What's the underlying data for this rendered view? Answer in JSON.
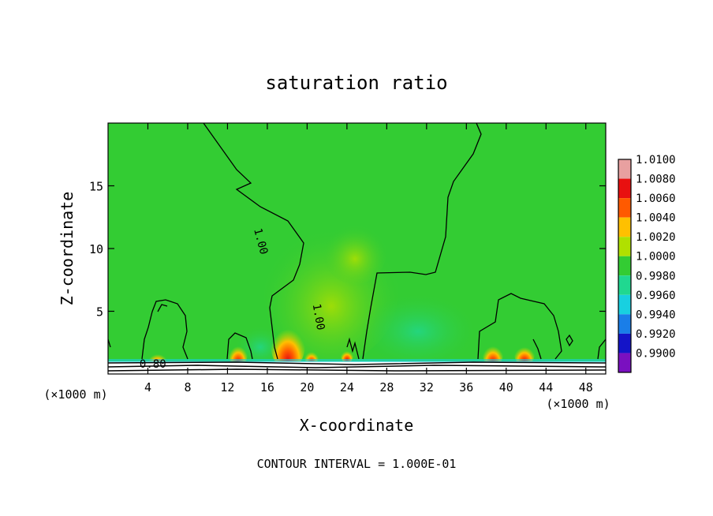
{
  "chart_data": {
    "type": "heatmap",
    "title": "saturation ratio",
    "xlabel": "X-coordinate",
    "ylabel": "Z-coordinate",
    "x_unit_left": "(×1000 m)",
    "x_unit_right": "(×1000 m)",
    "footer": "CONTOUR INTERVAL = 1.000E-01",
    "xlim": [
      0,
      50
    ],
    "ylim": [
      0,
      20
    ],
    "x_ticks": [
      4,
      8,
      12,
      16,
      20,
      24,
      28,
      32,
      36,
      40,
      44,
      48
    ],
    "x_tick_labels": [
      "4",
      "8",
      "12",
      "16",
      "20",
      "24",
      "28",
      "32",
      "36",
      "40",
      "44",
      "48"
    ],
    "y_ticks": [
      5,
      10,
      15
    ],
    "y_tick_labels": [
      "5",
      "10",
      "15"
    ],
    "colorbar": {
      "levels": [
        1.01,
        1.008,
        1.006,
        1.004,
        1.002,
        1.0,
        0.998,
        0.996,
        0.994,
        0.992,
        0.99
      ],
      "labels": [
        "1.0100",
        "1.0080",
        "1.0060",
        "1.0040",
        "1.0020",
        "1.0000",
        "0.9980",
        "0.9960",
        "0.9940",
        "0.9920",
        "0.9900"
      ],
      "colors": [
        "#e8a0a0",
        "#e81010",
        "#ff5a00",
        "#ffc000",
        "#b0e000",
        "#33cc33",
        "#20d890",
        "#18d0e0",
        "#1a7ee8",
        "#1414c8",
        "#7a10c0"
      ]
    },
    "background_color": "#33cc33",
    "contour_labels": [
      {
        "text": "1.00",
        "x": 15,
        "z": 10.5
      },
      {
        "text": "1.00",
        "x": 20.8,
        "z": 4.5
      },
      {
        "text": "0.80",
        "x": 4.5,
        "z": 0.5
      }
    ]
  }
}
